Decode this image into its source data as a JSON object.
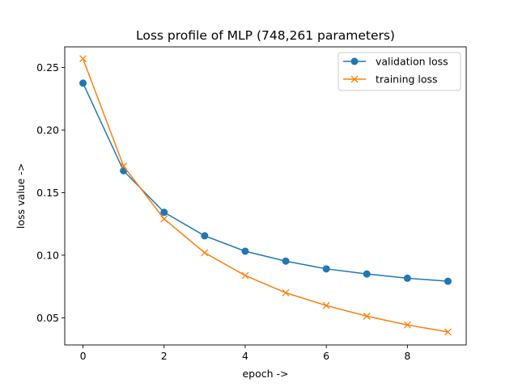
{
  "chart_data": {
    "type": "line",
    "title": "Loss profile of MLP (748,261 parameters)",
    "xlabel": "epoch ->",
    "ylabel": "loss value ->",
    "x": [
      0,
      1,
      2,
      3,
      4,
      5,
      6,
      7,
      8,
      9
    ],
    "xlim": [
      -0.45,
      9.45
    ],
    "ylim": [
      0.0283,
      0.2665
    ],
    "x_ticks": [
      0,
      2,
      4,
      6,
      8
    ],
    "x_tick_labels": [
      "0",
      "2",
      "4",
      "6",
      "8"
    ],
    "y_ticks": [
      0.05,
      0.1,
      0.15,
      0.2,
      0.25
    ],
    "y_tick_labels": [
      "0.05",
      "0.10",
      "0.15",
      "0.20",
      "0.25"
    ],
    "grid": false,
    "legend_position": "top-right",
    "series": [
      {
        "name": "validation loss",
        "color": "#1f77b4",
        "marker": "circle",
        "values": [
          0.2375,
          0.1675,
          0.1343,
          0.1155,
          0.1032,
          0.0953,
          0.0891,
          0.085,
          0.0816,
          0.0792
        ]
      },
      {
        "name": "training loss",
        "color": "#ff7f0e",
        "marker": "x",
        "values": [
          0.257,
          0.1712,
          0.129,
          0.102,
          0.0838,
          0.07,
          0.0598,
          0.0513,
          0.0443,
          0.0387
        ]
      }
    ]
  }
}
